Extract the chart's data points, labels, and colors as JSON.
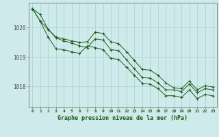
{
  "title": "Graphe pression niveau de la mer (hPa)",
  "bg_color": "#ceeaea",
  "grid_color": "#a8d0d0",
  "line_color": "#1a5c1a",
  "marker_color": "#1a5c1a",
  "xlim": [
    -0.5,
    23.5
  ],
  "ylim": [
    1017.3,
    1020.85
  ],
  "yticks": [
    1018,
    1019,
    1020
  ],
  "xticks": [
    0,
    1,
    2,
    3,
    4,
    5,
    6,
    7,
    8,
    9,
    10,
    11,
    12,
    13,
    14,
    15,
    16,
    17,
    18,
    19,
    20,
    21,
    22,
    23
  ],
  "series": [
    [
      1020.65,
      1020.22,
      1019.95,
      1019.65,
      1019.55,
      1019.48,
      1019.38,
      1019.32,
      1019.62,
      1019.58,
      1019.25,
      1019.22,
      1018.9,
      1018.6,
      1018.3,
      1018.28,
      1018.12,
      1017.88,
      1017.88,
      1017.82,
      1018.08,
      1017.78,
      1017.92,
      1017.88
    ],
    [
      1020.65,
      1020.22,
      1019.68,
      1019.28,
      1019.25,
      1019.18,
      1019.12,
      1019.38,
      1019.32,
      1019.25,
      1018.95,
      1018.92,
      1018.65,
      1018.38,
      1018.1,
      1018.08,
      1017.92,
      1017.68,
      1017.68,
      1017.62,
      1017.88,
      1017.58,
      1017.72,
      1017.68
    ],
    [
      1020.65,
      1020.45,
      1019.95,
      1019.68,
      1019.62,
      1019.55,
      1019.5,
      1019.52,
      1019.85,
      1019.8,
      1019.52,
      1019.45,
      1019.18,
      1018.88,
      1018.58,
      1018.55,
      1018.38,
      1018.12,
      1017.95,
      1017.92,
      1018.18,
      1017.88,
      1018.02,
      1017.98
    ]
  ]
}
